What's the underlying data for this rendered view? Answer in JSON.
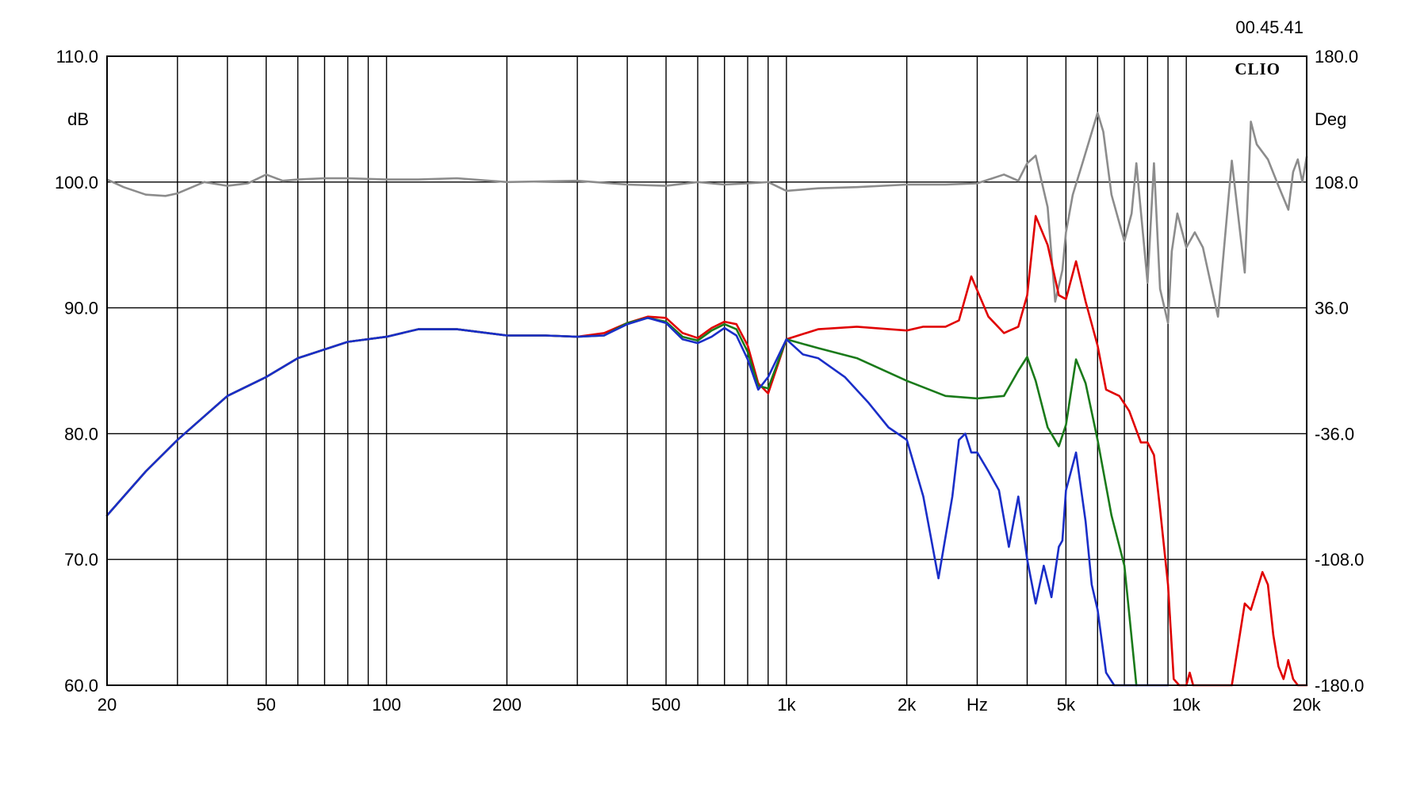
{
  "timestamp": "00.45.41",
  "logo_text": "CLIO",
  "chart_data": {
    "type": "line",
    "x_scale": "log",
    "xlim": [
      20,
      20000
    ],
    "ylim": [
      60,
      110
    ],
    "y2lim": [
      -180,
      180
    ],
    "grid": true,
    "left_unit": "dB",
    "right_unit": "Deg",
    "x_unit": "Hz",
    "x_grid": [
      20,
      30,
      40,
      50,
      60,
      70,
      80,
      90,
      100,
      200,
      300,
      400,
      500,
      600,
      700,
      800,
      900,
      1000,
      2000,
      3000,
      4000,
      5000,
      6000,
      7000,
      8000,
      9000,
      10000,
      20000
    ],
    "x_ticks": [
      {
        "value": 20,
        "label": "20"
      },
      {
        "value": 50,
        "label": "50"
      },
      {
        "value": 100,
        "label": "100"
      },
      {
        "value": 200,
        "label": "200"
      },
      {
        "value": 500,
        "label": "500"
      },
      {
        "value": 1000,
        "label": "1k"
      },
      {
        "value": 2000,
        "label": "2k"
      },
      {
        "value": 3000,
        "label": "Hz"
      },
      {
        "value": 5000,
        "label": "5k"
      },
      {
        "value": 10000,
        "label": "10k"
      },
      {
        "value": 20000,
        "label": "20k"
      }
    ],
    "y_ticks": [
      {
        "value": 110,
        "label": "110.0"
      },
      {
        "value": 100,
        "label": "100.0"
      },
      {
        "value": 90,
        "label": "90.0"
      },
      {
        "value": 80,
        "label": "80.0"
      },
      {
        "value": 70,
        "label": "70.0"
      },
      {
        "value": 60,
        "label": "60.0"
      }
    ],
    "y2_ticks": [
      {
        "value": 180,
        "label": "180.0"
      },
      {
        "value": 108,
        "label": "108.0"
      },
      {
        "value": 36,
        "label": "36.0"
      },
      {
        "value": -36,
        "label": "-36.0"
      },
      {
        "value": -108,
        "label": "-108.0"
      },
      {
        "value": -180,
        "label": "-180.0"
      }
    ],
    "series": [
      {
        "color": "#8c8c8c",
        "x": [
          20,
          22,
          25,
          28,
          30,
          35,
          40,
          45,
          50,
          55,
          60,
          70,
          80,
          100,
          120,
          150,
          200,
          300,
          400,
          500,
          600,
          700,
          800,
          900,
          1000,
          1200,
          1500,
          2000,
          2500,
          3000,
          3500,
          3800,
          4000,
          4200,
          4500,
          4700,
          4900,
          5000,
          5200,
          5500,
          6000,
          6200,
          6500,
          7000,
          7300,
          7500,
          8000,
          8300,
          8600,
          9000,
          9200,
          9500,
          10000,
          10500,
          11000,
          12000,
          13000,
          14000,
          14500,
          15000,
          16000,
          17000,
          18000,
          18500,
          19000,
          19500,
          20000
        ],
        "y": [
          100.2,
          99.6,
          99.0,
          98.9,
          99.1,
          100.0,
          99.7,
          99.9,
          100.6,
          100.1,
          100.2,
          100.3,
          100.3,
          100.2,
          100.2,
          100.3,
          100.0,
          100.1,
          99.8,
          99.7,
          100.0,
          99.8,
          99.9,
          100.0,
          99.3,
          99.5,
          99.6,
          99.8,
          99.8,
          99.9,
          100.6,
          100.1,
          101.5,
          102.1,
          98.0,
          90.5,
          93.0,
          96.0,
          99.0,
          101.5,
          105.5,
          104.0,
          99.0,
          95.3,
          97.5,
          101.5,
          92.0,
          101.5,
          91.5,
          88.8,
          94.5,
          97.5,
          94.8,
          96.0,
          94.8,
          89.3,
          101.7,
          92.8,
          104.8,
          103.0,
          101.8,
          99.7,
          97.8,
          100.8,
          101.8,
          100.0,
          102.0
        ]
      },
      {
        "color": "#e00000",
        "x": [
          20,
          25,
          30,
          40,
          50,
          60,
          80,
          100,
          120,
          150,
          200,
          250,
          300,
          350,
          400,
          450,
          500,
          550,
          600,
          650,
          700,
          750,
          800,
          850,
          900,
          1000,
          1200,
          1500,
          2000,
          2200,
          2500,
          2700,
          2900,
          3200,
          3500,
          3800,
          4000,
          4200,
          4500,
          4800,
          5000,
          5300,
          5600,
          6000,
          6300,
          6800,
          7200,
          7700,
          8000,
          8300,
          8600,
          9000,
          9300,
          9600,
          10000,
          10200,
          10400,
          11000,
          13000,
          14000,
          14500,
          15500,
          16000,
          16500,
          17000,
          17500,
          18000,
          18500,
          19000,
          20000
        ],
        "y": [
          73.5,
          77.0,
          79.5,
          83.0,
          84.5,
          86.0,
          87.3,
          87.7,
          88.3,
          88.3,
          87.8,
          87.8,
          87.7,
          88.0,
          88.8,
          89.3,
          89.2,
          88.0,
          87.6,
          88.4,
          88.9,
          88.7,
          87.0,
          84.0,
          83.2,
          87.5,
          88.3,
          88.5,
          88.2,
          88.5,
          88.5,
          89.0,
          92.5,
          89.3,
          88.0,
          88.5,
          91.0,
          97.3,
          95.0,
          91.0,
          90.7,
          93.7,
          90.5,
          87.0,
          83.5,
          83.0,
          81.8,
          79.3,
          79.3,
          78.3,
          74.0,
          68.0,
          60.5,
          60.0,
          60.0,
          61.0,
          60.0,
          60.0,
          60.0,
          66.5,
          66.0,
          69.0,
          68.0,
          64.0,
          61.5,
          60.5,
          62.0,
          60.5,
          60.0,
          60.0
        ]
      },
      {
        "color": "#1a7a1a",
        "x": [
          20,
          25,
          30,
          40,
          50,
          60,
          80,
          100,
          120,
          150,
          200,
          250,
          300,
          350,
          400,
          450,
          500,
          550,
          600,
          650,
          700,
          750,
          800,
          850,
          900,
          1000,
          1200,
          1500,
          2000,
          2500,
          3000,
          3500,
          3800,
          4000,
          4200,
          4500,
          4800,
          5000,
          5300,
          5600,
          6000,
          6500,
          7000,
          7500
        ],
        "y": [
          73.5,
          77.0,
          79.5,
          83.0,
          84.5,
          86.0,
          87.3,
          87.7,
          88.3,
          88.3,
          87.8,
          87.8,
          87.7,
          87.8,
          88.8,
          89.2,
          88.9,
          87.7,
          87.4,
          88.2,
          88.7,
          88.3,
          86.5,
          83.8,
          83.6,
          87.5,
          86.8,
          86.0,
          84.2,
          83.0,
          82.8,
          83.0,
          85.0,
          86.1,
          84.2,
          80.5,
          79.0,
          80.7,
          85.9,
          84.0,
          79.5,
          73.5,
          69.5,
          60.0
        ]
      },
      {
        "color": "#1a2ec8",
        "x": [
          20,
          25,
          30,
          40,
          50,
          60,
          80,
          100,
          120,
          150,
          200,
          250,
          300,
          350,
          400,
          450,
          500,
          550,
          600,
          650,
          700,
          750,
          800,
          850,
          900,
          1000,
          1100,
          1200,
          1400,
          1600,
          1800,
          2000,
          2200,
          2400,
          2600,
          2700,
          2800,
          2900,
          3000,
          3200,
          3400,
          3600,
          3800,
          4000,
          4200,
          4400,
          4600,
          4800,
          4900,
          5000,
          5300,
          5600,
          5800,
          6000,
          6300,
          6600,
          7000,
          7300,
          7700,
          8200,
          8700,
          9000
        ],
        "y": [
          73.5,
          77.0,
          79.5,
          83.0,
          84.5,
          86.0,
          87.3,
          87.7,
          88.3,
          88.3,
          87.8,
          87.8,
          87.7,
          87.8,
          88.7,
          89.2,
          88.8,
          87.5,
          87.2,
          87.7,
          88.4,
          87.8,
          85.9,
          83.5,
          84.5,
          87.5,
          86.3,
          86.0,
          84.5,
          82.5,
          80.5,
          79.5,
          75.0,
          68.5,
          75.0,
          79.5,
          80.0,
          78.5,
          78.5,
          77.0,
          75.5,
          71.0,
          75.0,
          70.0,
          66.5,
          69.5,
          67.0,
          71.0,
          71.5,
          75.5,
          78.5,
          73.0,
          68.0,
          66.0,
          61.0,
          60.0,
          60.0,
          60.0,
          60.0,
          60.0,
          60.0,
          60.0
        ]
      }
    ]
  }
}
